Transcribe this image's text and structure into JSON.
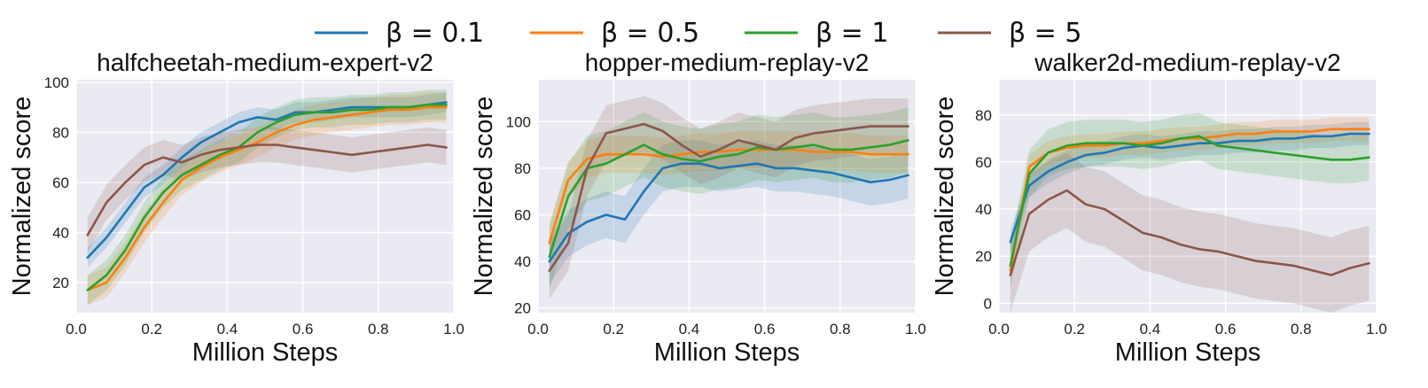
{
  "legend": [
    {
      "label": "β = 0.1",
      "color": "#1f77b4"
    },
    {
      "label": "β = 0.5",
      "color": "#ff7f0e"
    },
    {
      "label": "β = 1",
      "color": "#2ca02c"
    },
    {
      "label": "β = 5",
      "color": "#8c564b"
    }
  ],
  "chart_data": [
    {
      "type": "line",
      "title": "halfcheetah-medium-expert-v2",
      "xlabel": "Million Steps",
      "ylabel": "Normalized score",
      "xlim": [
        0.0,
        1.0
      ],
      "ylim": [
        8,
        101
      ],
      "xticks": [
        0.0,
        0.2,
        0.4,
        0.6,
        0.8,
        1.0
      ],
      "yticks": [
        20,
        40,
        60,
        80,
        100
      ],
      "grid": true,
      "x": [
        0.03,
        0.08,
        0.13,
        0.18,
        0.23,
        0.28,
        0.33,
        0.38,
        0.43,
        0.48,
        0.53,
        0.58,
        0.63,
        0.68,
        0.73,
        0.78,
        0.83,
        0.88,
        0.93,
        0.98
      ],
      "series": [
        {
          "name": "β = 0.1",
          "values": [
            30,
            38,
            48,
            58,
            63,
            70,
            76,
            80,
            84,
            86,
            85,
            88,
            88,
            89,
            90,
            90,
            90,
            90,
            91,
            92
          ],
          "band": 4
        },
        {
          "name": "β = 0.5",
          "values": [
            17,
            20,
            30,
            42,
            52,
            61,
            66,
            70,
            73,
            76,
            80,
            83,
            85,
            86,
            87,
            88,
            89,
            89,
            90,
            90
          ],
          "band": 6
        },
        {
          "name": "β = 1",
          "values": [
            17,
            23,
            33,
            46,
            56,
            63,
            67,
            71,
            74,
            80,
            84,
            87,
            88,
            88,
            89,
            89,
            90,
            90,
            91,
            91
          ],
          "band": 6
        },
        {
          "name": "β = 5",
          "values": [
            39,
            52,
            60,
            67,
            70,
            68,
            71,
            73,
            74,
            75,
            75,
            74,
            73,
            72,
            71,
            72,
            73,
            74,
            75,
            74
          ],
          "band": 7
        }
      ]
    },
    {
      "type": "line",
      "title": "hopper-medium-replay-v2",
      "xlabel": "Million Steps",
      "ylabel": "Normalized score",
      "xlim": [
        0.0,
        1.0
      ],
      "ylim": [
        18,
        118
      ],
      "xticks": [
        0.0,
        0.2,
        0.4,
        0.6,
        0.8,
        1.0
      ],
      "yticks": [
        20,
        40,
        60,
        80,
        100
      ],
      "grid": true,
      "x": [
        0.03,
        0.08,
        0.13,
        0.18,
        0.23,
        0.28,
        0.33,
        0.38,
        0.43,
        0.48,
        0.53,
        0.58,
        0.63,
        0.68,
        0.73,
        0.78,
        0.83,
        0.88,
        0.93,
        0.98
      ],
      "series": [
        {
          "name": "β = 0.1",
          "values": [
            40,
            52,
            57,
            60,
            58,
            70,
            80,
            82,
            82,
            80,
            81,
            82,
            80,
            80,
            79,
            78,
            76,
            74,
            75,
            77
          ],
          "band": 10
        },
        {
          "name": "β = 0.5",
          "values": [
            48,
            75,
            84,
            86,
            86,
            86,
            85,
            86,
            87,
            87,
            88,
            88,
            88,
            88,
            87,
            87,
            87,
            86,
            86,
            86
          ],
          "band": 8
        },
        {
          "name": "β = 1",
          "values": [
            42,
            68,
            80,
            82,
            86,
            90,
            86,
            84,
            83,
            85,
            86,
            89,
            88,
            89,
            90,
            88,
            88,
            89,
            90,
            92
          ],
          "band": 14
        },
        {
          "name": "β = 5",
          "values": [
            36,
            48,
            80,
            95,
            97,
            99,
            96,
            90,
            85,
            88,
            92,
            90,
            88,
            93,
            95,
            96,
            97,
            98,
            98,
            98
          ],
          "band": 12
        }
      ]
    },
    {
      "type": "line",
      "title": "walker2d-medium-replay-v2",
      "xlabel": "Million Steps",
      "ylabel": "Normalized score",
      "xlim": [
        0.0,
        1.0
      ],
      "ylim": [
        -4,
        95
      ],
      "xticks": [
        0.0,
        0.2,
        0.4,
        0.6,
        0.8,
        1.0
      ],
      "yticks": [
        0,
        20,
        40,
        60,
        80
      ],
      "grid": true,
      "x": [
        0.03,
        0.08,
        0.13,
        0.18,
        0.23,
        0.28,
        0.33,
        0.38,
        0.43,
        0.48,
        0.53,
        0.58,
        0.63,
        0.68,
        0.73,
        0.78,
        0.83,
        0.88,
        0.93,
        0.98
      ],
      "series": [
        {
          "name": "β = 0.1",
          "values": [
            26,
            50,
            56,
            60,
            63,
            64,
            66,
            67,
            66,
            67,
            68,
            68,
            69,
            69,
            70,
            70,
            71,
            71,
            72,
            72
          ],
          "band": 5
        },
        {
          "name": "β = 0.5",
          "values": [
            14,
            58,
            64,
            66,
            67,
            67,
            68,
            68,
            69,
            70,
            70,
            71,
            72,
            72,
            73,
            73,
            73,
            74,
            74,
            74
          ],
          "band": 5
        },
        {
          "name": "β = 1",
          "values": [
            16,
            55,
            64,
            67,
            68,
            68,
            68,
            67,
            68,
            70,
            71,
            67,
            66,
            65,
            64,
            63,
            62,
            61,
            61,
            62
          ],
          "band": 10
        },
        {
          "name": "β = 5",
          "values": [
            12,
            38,
            44,
            48,
            42,
            40,
            35,
            30,
            28,
            25,
            23,
            22,
            20,
            18,
            17,
            16,
            14,
            12,
            15,
            17
          ],
          "band": 16
        }
      ]
    }
  ]
}
